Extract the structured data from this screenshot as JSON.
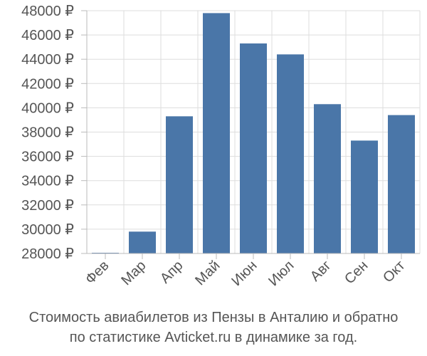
{
  "chart_data": {
    "type": "bar",
    "categories": [
      "Фев",
      "Мар",
      "Апр",
      "Май",
      "Июн",
      "Июл",
      "Авг",
      "Сен",
      "Окт"
    ],
    "values": [
      28000,
      29800,
      39300,
      47800,
      45300,
      44400,
      40300,
      37300,
      39400
    ],
    "ylim": [
      28000,
      48000
    ],
    "yticks": [
      "28000 ₽",
      "30000 ₽",
      "32000 ₽",
      "34000 ₽",
      "36000 ₽",
      "38000 ₽",
      "40000 ₽",
      "42000 ₽",
      "44000 ₽",
      "46000 ₽",
      "48000 ₽"
    ],
    "ytick_values": [
      28000,
      30000,
      32000,
      34000,
      36000,
      38000,
      40000,
      42000,
      44000,
      46000,
      48000
    ],
    "grid": true,
    "bar_color": "#4a76a8",
    "grid_color": "#dddddd",
    "axis_color": "#bbbbbb",
    "text_color": "#555555"
  },
  "caption": {
    "line1": "Стоимость авиабилетов из Пензы в Анталию и обратно",
    "line2": "по статистике Avticket.ru в динамике за год."
  }
}
